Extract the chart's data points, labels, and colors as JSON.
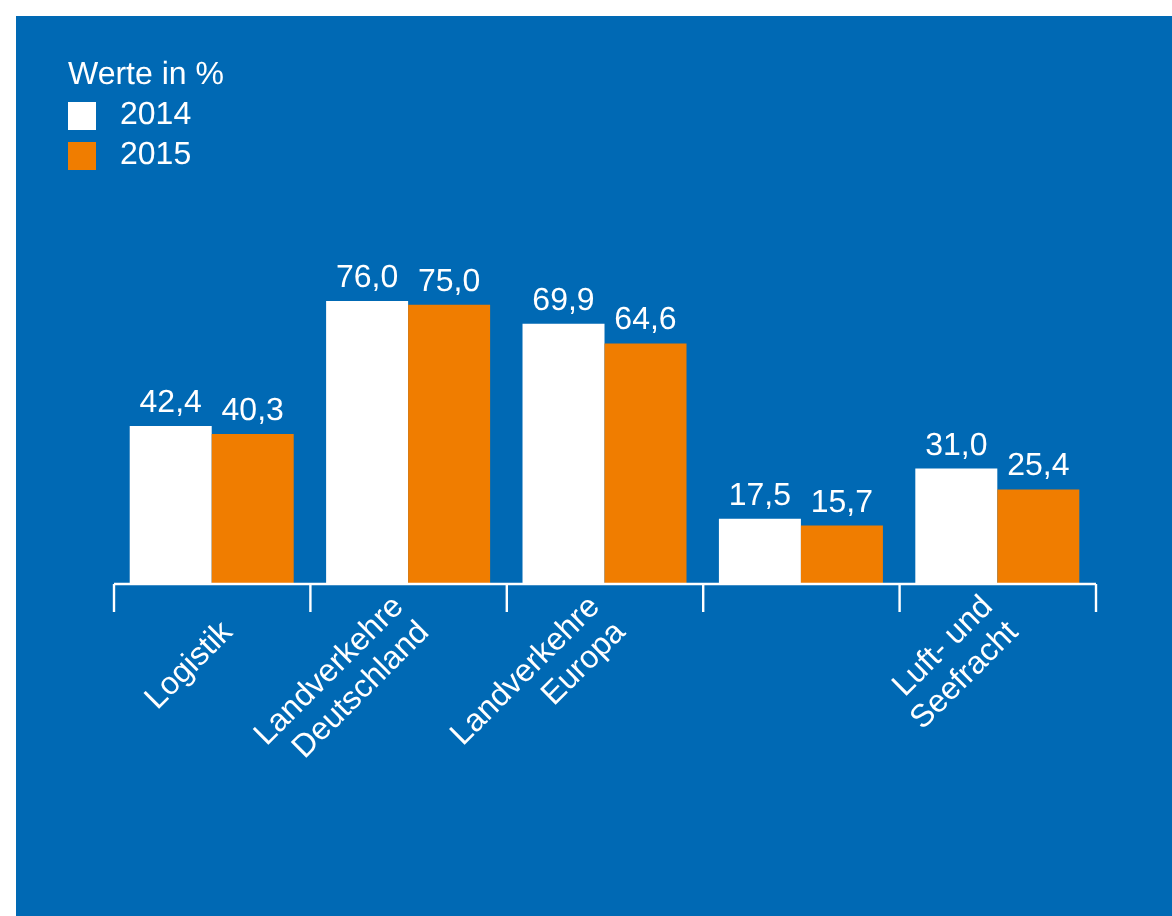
{
  "chart_data": {
    "type": "bar",
    "legend_title": "Werte in %",
    "categories": [
      "Logistik",
      "Landverkehre\nDeutschland",
      "Landverkehre\nEuropa",
      null,
      "Luft- und\nSeefracht"
    ],
    "series": [
      {
        "name": "2014",
        "color": "#ffffff",
        "values": [
          42.4,
          76.0,
          69.9,
          17.5,
          31.0
        ],
        "value_labels": [
          "42,4",
          "76,0",
          "69,9",
          "17,5",
          "31,0"
        ]
      },
      {
        "name": "2015",
        "color": "#f07d00",
        "values": [
          40.3,
          75.0,
          64.6,
          15.7,
          25.4
        ],
        "value_labels": [
          "40,3",
          "75,0",
          "64,6",
          "15,7",
          "25,4"
        ]
      }
    ],
    "legend": "top left",
    "grid": false
  }
}
